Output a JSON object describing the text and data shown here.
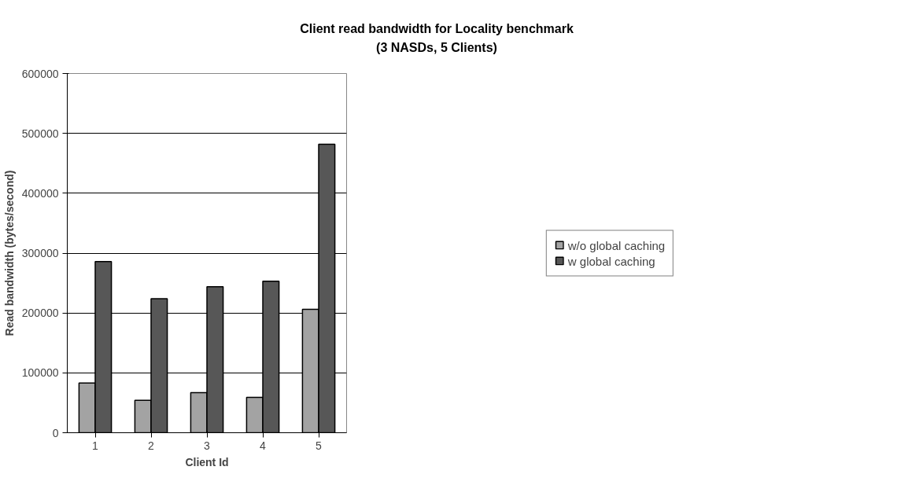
{
  "chart_data": {
    "type": "bar",
    "title": "Client read bandwidth for Locality benchmark\n(3 NASDs, 5 Clients)",
    "xlabel": "Client Id",
    "ylabel": "Read bandwidth (bytes/second)",
    "categories": [
      "1",
      "2",
      "3",
      "4",
      "5"
    ],
    "series": [
      {
        "name": "w/o global caching",
        "color": "#a3a3a3",
        "values": [
          83000,
          54000,
          67000,
          59000,
          206000
        ]
      },
      {
        "name": "w global caching",
        "color": "#575757",
        "values": [
          286000,
          224000,
          244000,
          253000,
          482000
        ]
      }
    ],
    "ylim": [
      0,
      600000
    ],
    "yticks": [
      0,
      100000,
      200000,
      300000,
      400000,
      500000,
      600000
    ],
    "grid": "y",
    "legend": "right"
  }
}
